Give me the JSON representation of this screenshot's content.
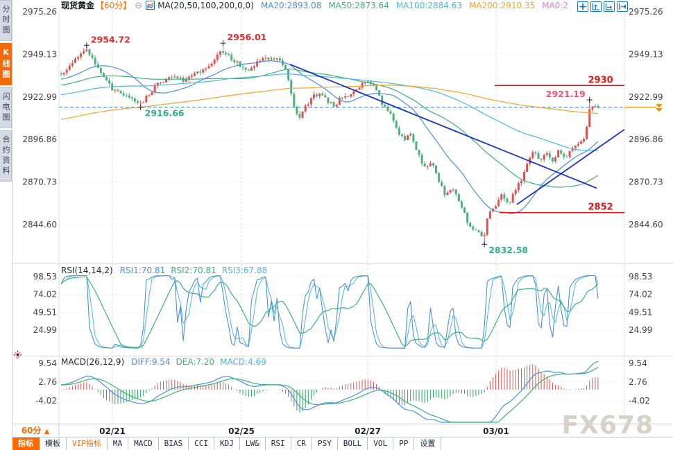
{
  "watermark": "FX678",
  "sidebar": {
    "tabs": [
      {
        "key": "time-chart",
        "label": "分时图",
        "active": false
      },
      {
        "key": "kline-chart",
        "label": "K线图",
        "active": true
      },
      {
        "key": "tick-chart",
        "label": "闪电图",
        "active": false
      },
      {
        "key": "contract-info",
        "label": "合约资料",
        "active": false
      }
    ]
  },
  "header": {
    "symbol": "现货黄金",
    "period_tag": "【60分】",
    "collapse_icon": "circle-minus-icon",
    "chart_type_icon": "mini-line-chart-icon",
    "ma_title": "MA(20,50,100,200,0,0)",
    "ma_items": [
      {
        "label": "MA20:2893.08",
        "color": "#4a8fe2"
      },
      {
        "label": "MA50:2873.64",
        "color": "#39b27a"
      },
      {
        "label": "MA100:2884.63",
        "color": "#49b8dc"
      },
      {
        "label": "MA200:2910.35",
        "color": "#f5a32a"
      },
      {
        "label": "MA0:2",
        "color": "#e57ad8"
      }
    ],
    "toolbar_icons": [
      "crosshair-move-icon",
      "axis-zoom-up-icon",
      "axis-pan-right-icon",
      "shift-right-icon"
    ]
  },
  "period_selector": {
    "label": "60分",
    "arrow": "▲"
  },
  "bottom_bar": {
    "tabs": [
      {
        "key": "indicators",
        "label": "指标",
        "active": true
      },
      {
        "key": "templates",
        "label": "模板"
      },
      {
        "key": "vip-indicators",
        "label": "VIP指标",
        "accent": true
      },
      {
        "key": "ma",
        "label": "MA"
      },
      {
        "key": "macd",
        "label": "MACD"
      },
      {
        "key": "bias",
        "label": "BIAS"
      },
      {
        "key": "cci",
        "label": "CCI"
      },
      {
        "key": "kdj",
        "label": "KDJ"
      },
      {
        "key": "lwr",
        "label": "LW&"
      },
      {
        "key": "rsi",
        "label": "RSI"
      },
      {
        "key": "cr",
        "label": "CR"
      },
      {
        "key": "psy",
        "label": "PSY"
      },
      {
        "key": "boll",
        "label": "BOLL"
      },
      {
        "key": "vol",
        "label": "VOL"
      },
      {
        "key": "pp",
        "label": "PP"
      },
      {
        "key": "settings",
        "label": "设置"
      }
    ]
  },
  "chart_data": [
    {
      "type": "candlestick",
      "title": "现货黄金 60分",
      "num_candles": 190,
      "up_color": "#e0514d",
      "down_color": "#4fae7f",
      "y_ticks": [
        2975.26,
        2949.13,
        2922.99,
        2896.86,
        2870.73,
        2844.6
      ],
      "x_tick_labels": [
        "02/21",
        "02/25",
        "02/27",
        "03/01"
      ],
      "x_tick_pos": [
        0.0945,
        0.3227,
        0.546,
        0.773
      ],
      "current_price": {
        "value": 2916.66,
        "line_color": "#2e86e8",
        "marker_color": "#f08c00"
      },
      "price_anchors": [
        [
          0.0,
          2937
        ],
        [
          0.018,
          2943
        ],
        [
          0.034,
          2948
        ],
        [
          0.047,
          2952
        ],
        [
          0.06,
          2946
        ],
        [
          0.075,
          2936
        ],
        [
          0.095,
          2928
        ],
        [
          0.118,
          2924
        ],
        [
          0.135,
          2921
        ],
        [
          0.15,
          2918.5
        ],
        [
          0.163,
          2925
        ],
        [
          0.18,
          2931
        ],
        [
          0.205,
          2936
        ],
        [
          0.228,
          2933
        ],
        [
          0.25,
          2937
        ],
        [
          0.27,
          2941
        ],
        [
          0.288,
          2947
        ],
        [
          0.3,
          2951
        ],
        [
          0.312,
          2948
        ],
        [
          0.33,
          2943
        ],
        [
          0.348,
          2940
        ],
        [
          0.365,
          2944
        ],
        [
          0.385,
          2947
        ],
        [
          0.405,
          2946
        ],
        [
          0.42,
          2938
        ],
        [
          0.432,
          2920
        ],
        [
          0.442,
          2909
        ],
        [
          0.455,
          2917
        ],
        [
          0.468,
          2923
        ],
        [
          0.482,
          2925
        ],
        [
          0.495,
          2921
        ],
        [
          0.508,
          2917
        ],
        [
          0.52,
          2922
        ],
        [
          0.535,
          2924
        ],
        [
          0.555,
          2929
        ],
        [
          0.572,
          2933
        ],
        [
          0.585,
          2928
        ],
        [
          0.598,
          2919
        ],
        [
          0.612,
          2913
        ],
        [
          0.625,
          2903
        ],
        [
          0.638,
          2896
        ],
        [
          0.65,
          2901
        ],
        [
          0.663,
          2890
        ],
        [
          0.676,
          2879
        ],
        [
          0.69,
          2884
        ],
        [
          0.703,
          2872
        ],
        [
          0.716,
          2862
        ],
        [
          0.728,
          2867
        ],
        [
          0.742,
          2858
        ],
        [
          0.758,
          2846
        ],
        [
          0.775,
          2840
        ],
        [
          0.787,
          2835
        ],
        [
          0.795,
          2850
        ],
        [
          0.808,
          2855
        ],
        [
          0.82,
          2862
        ],
        [
          0.833,
          2857
        ],
        [
          0.845,
          2865
        ],
        [
          0.858,
          2873
        ],
        [
          0.87,
          2883
        ],
        [
          0.882,
          2890
        ],
        [
          0.893,
          2883
        ],
        [
          0.904,
          2889
        ],
        [
          0.915,
          2884
        ],
        [
          0.926,
          2890
        ],
        [
          0.937,
          2885
        ],
        [
          0.947,
          2890
        ],
        [
          0.957,
          2894
        ],
        [
          0.967,
          2896
        ],
        [
          0.975,
          2898
        ],
        [
          0.985,
          2917
        ],
        [
          1.0,
          2916.5
        ]
      ],
      "annotations": [
        {
          "type": "high",
          "t": 0.047,
          "price": 2954.72,
          "label": "2954.72",
          "color": "#e02a2a",
          "side": "right"
        },
        {
          "type": "low",
          "t": 0.15,
          "price": 2916.66,
          "label": "2916.66",
          "color": "#2fae8f",
          "side": "right"
        },
        {
          "type": "high",
          "t": 0.303,
          "price": 2956.01,
          "label": "2956.01",
          "color": "#e02a2a",
          "side": "right"
        },
        {
          "type": "low",
          "t": 0.787,
          "price": 2832.58,
          "label": "2832.58",
          "color": "#2fae8f",
          "side": "right"
        },
        {
          "type": "high",
          "t": 0.985,
          "price": 2921.19,
          "label": "2921.19",
          "color": "#f14e6d",
          "side": "left"
        }
      ],
      "levels": [
        {
          "value": 2930,
          "label": "2930",
          "color": "#e01515",
          "x_from": 0.7706,
          "x_to": 1.0,
          "label_x": 0.98
        },
        {
          "value": 2852,
          "label": "2852",
          "color": "#e01515",
          "x_from": 0.779,
          "x_to": 1.0,
          "label_x": 0.98
        }
      ],
      "trendlines": [
        {
          "from": [
            0.4086,
            2943
          ],
          "to": [
            0.9509,
            2867
          ],
          "color": "#1c32c8"
        },
        {
          "from": [
            0.8098,
            2857
          ],
          "to": [
            1.0,
            2903
          ],
          "color": "#1c32c8"
        }
      ],
      "ma": {
        "periods": [
          20,
          50,
          100,
          200
        ],
        "colors": [
          "#4a8fe2",
          "#39b27a",
          "#49b8dc",
          "#f5a32a"
        ],
        "values": [
          2893.08,
          2873.64,
          2884.63,
          2910.35
        ]
      }
    },
    {
      "type": "line",
      "name": "RSI",
      "param_label": "RSI(14,14,2)",
      "legend": [
        {
          "label": "RSI1:70.81",
          "color": "#4a8fe2"
        },
        {
          "label": "RSI2:70.81",
          "color": "#39b27a"
        },
        {
          "label": "RSI3:67.88",
          "color": "#49b8dc"
        }
      ],
      "y_ticks": [
        98.53,
        74.02,
        49.51,
        24.99
      ]
    },
    {
      "type": "macd",
      "name": "MACD",
      "param_label": "MACD(26,12,9)",
      "legend": [
        {
          "label": "DIFF:9.54",
          "color": "#4a8fe2"
        },
        {
          "label": "DEA:7.20",
          "color": "#39b27a"
        },
        {
          "label": "MACD:4.69",
          "color": "#49b8dc"
        }
      ],
      "y_ticks": [
        9.54,
        2.76,
        -4.02
      ],
      "hist_up_color": "#d9534f",
      "hist_down_color": "#2e9e5b"
    }
  ]
}
